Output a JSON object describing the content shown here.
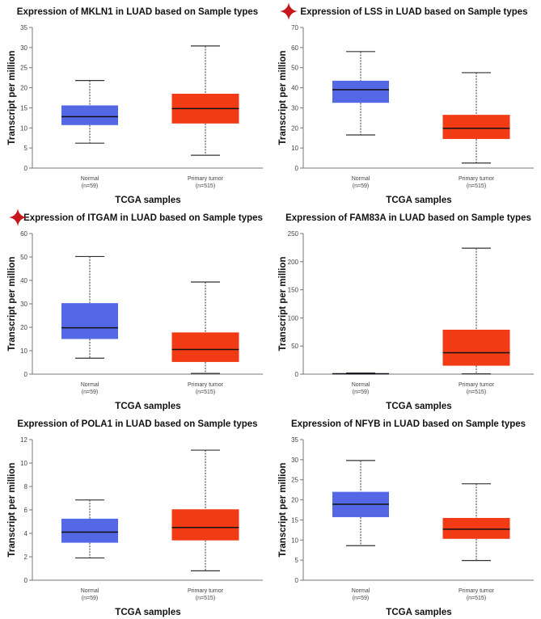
{
  "chart_data": [
    {
      "type": "box",
      "title": "Expression of MKLN1 in LUAD based on Sample types",
      "starred": false,
      "xlabel": "TCGA samples",
      "ylabel": "Transcript per million",
      "ylim": [
        0,
        35
      ],
      "ytick_step": 5,
      "categories": [
        {
          "name": "Normal",
          "n": "(n=59)",
          "min": 6.2,
          "q1": 10.7,
          "median": 12.8,
          "q3": 15.6,
          "max": 21.8
        },
        {
          "name": "Primary tumor",
          "n": "(n=515)",
          "min": 3.2,
          "q1": 11.1,
          "median": 14.8,
          "q3": 18.5,
          "max": 30.4
        }
      ]
    },
    {
      "type": "box",
      "title": "Expression of LSS in LUAD based on Sample types",
      "starred": true,
      "xlabel": "TCGA samples",
      "ylabel": "Transcript per million",
      "ylim": [
        0,
        70
      ],
      "ytick_step": 10,
      "categories": [
        {
          "name": "Normal",
          "n": "(n=59)",
          "min": 16.5,
          "q1": 32.5,
          "median": 39,
          "q3": 43.5,
          "max": 58
        },
        {
          "name": "Primary tumor",
          "n": "(n=515)",
          "min": 2.5,
          "q1": 14.5,
          "median": 19.8,
          "q3": 26.5,
          "max": 47.5
        }
      ]
    },
    {
      "type": "box",
      "title": "Expression of ITGAM in LUAD based on Sample types",
      "starred": true,
      "xlabel": "TCGA samples",
      "ylabel": "Transcript per million",
      "ylim": [
        0,
        60
      ],
      "ytick_step": 10,
      "categories": [
        {
          "name": "Normal",
          "n": "(n=59)",
          "min": 6.8,
          "q1": 15,
          "median": 19.8,
          "q3": 30.3,
          "max": 50.2
        },
        {
          "name": "Primary tumor",
          "n": "(n=515)",
          "min": 0.3,
          "q1": 5.2,
          "median": 10.5,
          "q3": 17.8,
          "max": 39.3
        }
      ]
    },
    {
      "type": "box",
      "title": "Expression of FAM83A in LUAD based on Sample types",
      "starred": false,
      "xlabel": "TCGA samples",
      "ylabel": "Transcript per million",
      "ylim": [
        0,
        250
      ],
      "ytick_step": 50,
      "categories": [
        {
          "name": "Normal",
          "n": "(n=59)",
          "min": 0.2,
          "q1": 0.5,
          "median": 0.8,
          "q3": 1.2,
          "max": 2
        },
        {
          "name": "Primary tumor",
          "n": "(n=515)",
          "min": 0.5,
          "q1": 15,
          "median": 38,
          "q3": 79,
          "max": 224
        }
      ]
    },
    {
      "type": "box",
      "title": "Expression of POLA1 in LUAD based on Sample types",
      "starred": false,
      "xlabel": "TCGA samples",
      "ylabel": "Transcript per million",
      "ylim": [
        0,
        12
      ],
      "ytick_step": 2,
      "categories": [
        {
          "name": "Normal",
          "n": "(n=59)",
          "min": 1.9,
          "q1": 3.2,
          "median": 4.1,
          "q3": 5.25,
          "max": 6.85
        },
        {
          "name": "Primary tumor",
          "n": "(n=515)",
          "min": 0.8,
          "q1": 3.4,
          "median": 4.5,
          "q3": 6.05,
          "max": 11.1
        }
      ]
    },
    {
      "type": "box",
      "title": "Expression of NFYB in LUAD based on Sample types",
      "starred": false,
      "xlabel": "TCGA samples",
      "ylabel": "Transcript per million",
      "ylim": [
        0,
        35
      ],
      "ytick_step": 5,
      "categories": [
        {
          "name": "Normal",
          "n": "(n=59)",
          "min": 8.6,
          "q1": 15.7,
          "median": 18.9,
          "q3": 22,
          "max": 29.8
        },
        {
          "name": "Primary tumor",
          "n": "(n=515)",
          "min": 4.9,
          "q1": 10.3,
          "median": 12.7,
          "q3": 15.5,
          "max": 24
        }
      ]
    }
  ],
  "colors": {
    "normal": "#5468e6",
    "tumor": "#f23a14",
    "star": "#c8161d",
    "axis": "#777777"
  }
}
